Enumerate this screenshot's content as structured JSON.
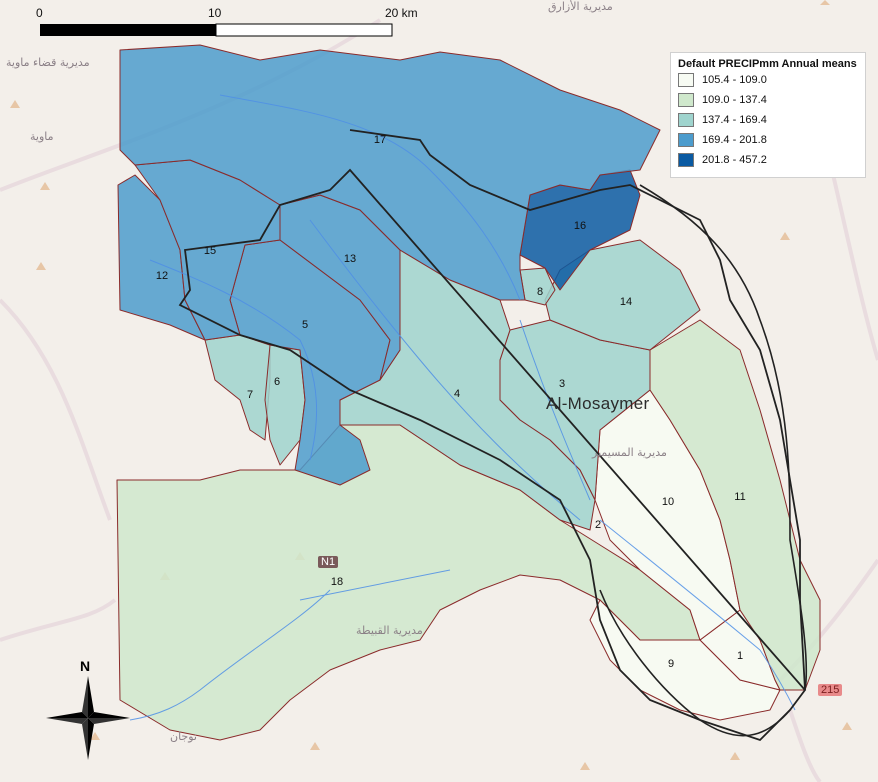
{
  "scale_bar": {
    "ticks": [
      "0",
      "10",
      "20 km"
    ]
  },
  "legend": {
    "title": "Default PRECIPmm Annual means",
    "classes": [
      {
        "label": "105.4 - 109.0",
        "color": "#f7fbf3"
      },
      {
        "label": "109.0 - 137.4",
        "color": "#cfe8cc"
      },
      {
        "label": "137.4 - 169.4",
        "color": "#9fd4ce"
      },
      {
        "label": "169.4 - 201.8",
        "color": "#4c9ccd"
      },
      {
        "label": "201.8 - 457.2",
        "color": "#0a5aa2"
      }
    ]
  },
  "place_label": "Al-Mosaymer",
  "road_shields": [
    "N1",
    "215"
  ],
  "north_arrow": {
    "label": "N"
  },
  "arabic_labels": [
    "مديرية قضاء ماوية",
    "ماوية",
    "مديرية الأزارق",
    "مديرية المسيمير",
    "مديرية القبيطة",
    "نوجان"
  ],
  "subbasins": [
    {
      "id": "1",
      "class": 0
    },
    {
      "id": "2",
      "class": 1
    },
    {
      "id": "3",
      "class": 2
    },
    {
      "id": "4",
      "class": 2
    },
    {
      "id": "5",
      "class": 3
    },
    {
      "id": "6",
      "class": 2
    },
    {
      "id": "7",
      "class": 2
    },
    {
      "id": "8",
      "class": 2
    },
    {
      "id": "9",
      "class": 0
    },
    {
      "id": "10",
      "class": 1
    },
    {
      "id": "11",
      "class": 1
    },
    {
      "id": "12",
      "class": 3
    },
    {
      "id": "13",
      "class": 3
    },
    {
      "id": "14",
      "class": 2
    },
    {
      "id": "15",
      "class": 3
    },
    {
      "id": "16",
      "class": 4
    },
    {
      "id": "17",
      "class": 3
    },
    {
      "id": "18",
      "class": 1
    }
  ],
  "icons": [
    "north-arrow-icon",
    "scale-bar-icon"
  ]
}
